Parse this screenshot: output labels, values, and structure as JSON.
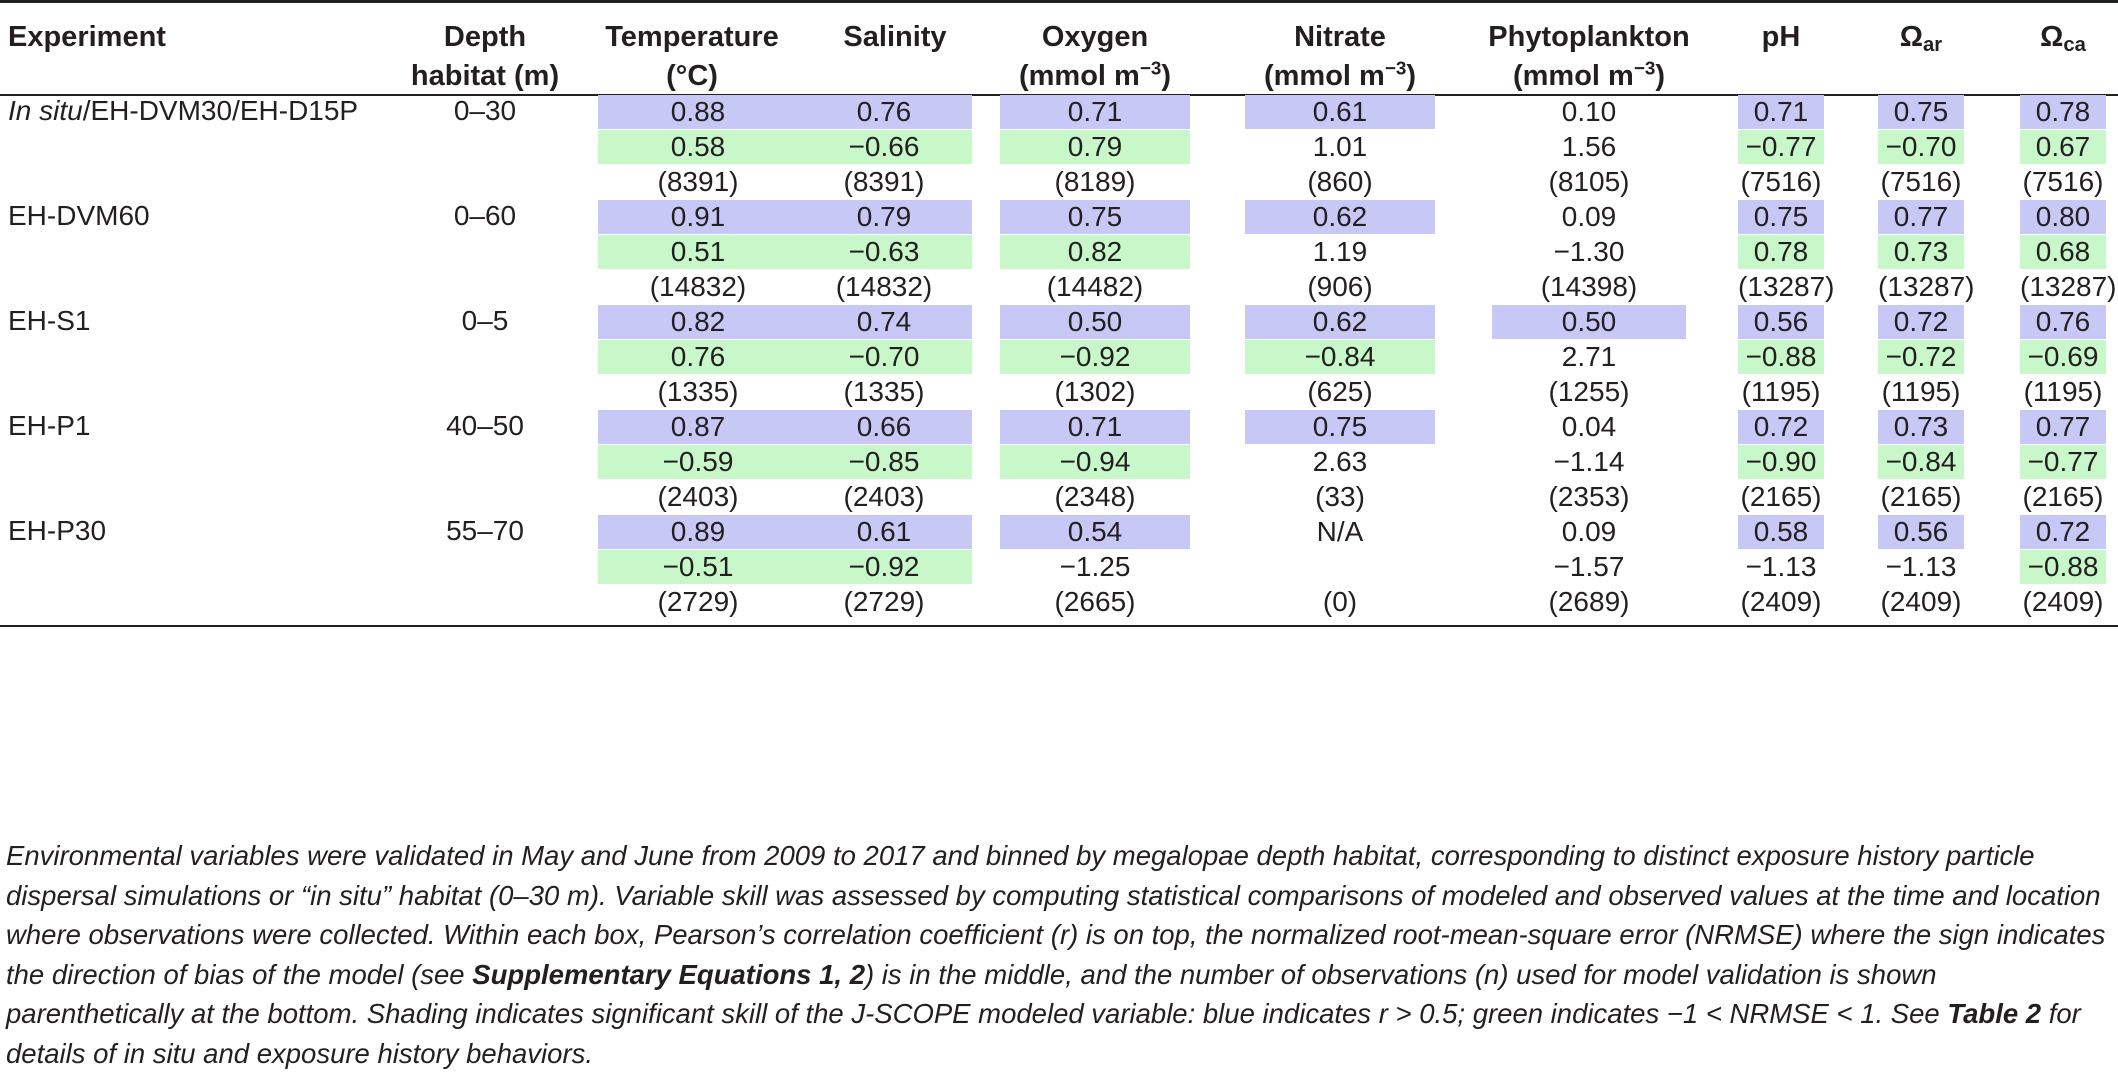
{
  "headers": {
    "experiment": "Experiment",
    "depth": [
      "Depth",
      "habitat (m)"
    ],
    "temperature": [
      "Temperature",
      "(°C)"
    ],
    "salinity": "Salinity",
    "oxygen": [
      "Oxygen",
      "(mmol m",
      "−3",
      ")"
    ],
    "nitrate": [
      "Nitrate",
      "(mmol m",
      "−3",
      ")"
    ],
    "phytoplankton": [
      "Phytoplankton",
      "(mmol m",
      "−3",
      ")"
    ],
    "ph": "pH",
    "omega_ar": [
      "Ω",
      "ar"
    ],
    "omega_ca": [
      "Ω",
      "ca"
    ]
  },
  "rows": [
    {
      "experiment_italic": "In situ",
      "experiment": "/EH-DVM30/EH-D15P",
      "depth": "0–30",
      "cells": [
        {
          "r": "0.88",
          "rb": true,
          "e": "0.58",
          "eg": true,
          "n": "(8391)"
        },
        {
          "r": "0.76",
          "rb": true,
          "e": "−0.66",
          "eg": true,
          "n": "(8391)"
        },
        {
          "r": "0.71",
          "rb": true,
          "e": "0.79",
          "eg": true,
          "n": "(8189)"
        },
        {
          "r": "0.61",
          "rb": true,
          "e": "1.01",
          "eg": false,
          "n": "(860)"
        },
        {
          "r": "0.10",
          "rb": false,
          "e": "1.56",
          "eg": false,
          "n": "(8105)"
        },
        {
          "r": "0.71",
          "rb": true,
          "e": "−0.77",
          "eg": true,
          "n": "(7516)"
        },
        {
          "r": "0.75",
          "rb": true,
          "e": "−0.70",
          "eg": true,
          "n": "(7516)"
        },
        {
          "r": "0.78",
          "rb": true,
          "e": "0.67",
          "eg": true,
          "n": "(7516)"
        }
      ]
    },
    {
      "experiment_italic": "",
      "experiment": "EH-DVM60",
      "depth": "0–60",
      "cells": [
        {
          "r": "0.91",
          "rb": true,
          "e": "0.51",
          "eg": true,
          "n": "(14832)"
        },
        {
          "r": "0.79",
          "rb": true,
          "e": "−0.63",
          "eg": true,
          "n": "(14832)"
        },
        {
          "r": "0.75",
          "rb": true,
          "e": "0.82",
          "eg": true,
          "n": "(14482)"
        },
        {
          "r": "0.62",
          "rb": true,
          "e": "1.19",
          "eg": false,
          "n": "(906)"
        },
        {
          "r": "0.09",
          "rb": false,
          "e": "−1.30",
          "eg": false,
          "n": "(14398)"
        },
        {
          "r": "0.75",
          "rb": true,
          "e": "0.78",
          "eg": true,
          "n": "(13287)"
        },
        {
          "r": "0.77",
          "rb": true,
          "e": "0.73",
          "eg": true,
          "n": "(13287)"
        },
        {
          "r": "0.80",
          "rb": true,
          "e": "0.68",
          "eg": true,
          "n": "(13287)"
        }
      ]
    },
    {
      "experiment_italic": "",
      "experiment": "EH-S1",
      "depth": "0–5",
      "cells": [
        {
          "r": "0.82",
          "rb": true,
          "e": "0.76",
          "eg": true,
          "n": "(1335)"
        },
        {
          "r": "0.74",
          "rb": true,
          "e": "−0.70",
          "eg": true,
          "n": "(1335)"
        },
        {
          "r": "0.50",
          "rb": true,
          "e": "−0.92",
          "eg": true,
          "n": "(1302)"
        },
        {
          "r": "0.62",
          "rb": true,
          "e": "−0.84",
          "eg": true,
          "n": "(625)"
        },
        {
          "r": "0.50",
          "rb": true,
          "e": "2.71",
          "eg": false,
          "n": "(1255)"
        },
        {
          "r": "0.56",
          "rb": true,
          "e": "−0.88",
          "eg": true,
          "n": "(1195)"
        },
        {
          "r": "0.72",
          "rb": true,
          "e": "−0.72",
          "eg": true,
          "n": "(1195)"
        },
        {
          "r": "0.76",
          "rb": true,
          "e": "−0.69",
          "eg": true,
          "n": "(1195)"
        }
      ]
    },
    {
      "experiment_italic": "",
      "experiment": "EH-P1",
      "depth": "40–50",
      "cells": [
        {
          "r": "0.87",
          "rb": true,
          "e": "−0.59",
          "eg": true,
          "n": "(2403)"
        },
        {
          "r": "0.66",
          "rb": true,
          "e": "−0.85",
          "eg": true,
          "n": "(2403)"
        },
        {
          "r": "0.71",
          "rb": true,
          "e": "−0.94",
          "eg": true,
          "n": "(2348)"
        },
        {
          "r": "0.75",
          "rb": true,
          "e": "2.63",
          "eg": false,
          "n": "(33)"
        },
        {
          "r": "0.04",
          "rb": false,
          "e": "−1.14",
          "eg": false,
          "n": "(2353)"
        },
        {
          "r": "0.72",
          "rb": true,
          "e": "−0.90",
          "eg": true,
          "n": "(2165)"
        },
        {
          "r": "0.73",
          "rb": true,
          "e": "−0.84",
          "eg": true,
          "n": "(2165)"
        },
        {
          "r": "0.77",
          "rb": true,
          "e": "−0.77",
          "eg": true,
          "n": "(2165)"
        }
      ]
    },
    {
      "experiment_italic": "",
      "experiment": "EH-P30",
      "depth": "55–70",
      "cells": [
        {
          "r": "0.89",
          "rb": true,
          "e": "−0.51",
          "eg": true,
          "n": "(2729)"
        },
        {
          "r": "0.61",
          "rb": true,
          "e": "−0.92",
          "eg": true,
          "n": "(2729)"
        },
        {
          "r": "0.54",
          "rb": true,
          "e": "−1.25",
          "eg": false,
          "n": "(2665)"
        },
        {
          "r": "N/A",
          "rb": false,
          "e": "",
          "eg": false,
          "n": "(0)"
        },
        {
          "r": "0.09",
          "rb": false,
          "e": "−1.57",
          "eg": false,
          "n": "(2689)"
        },
        {
          "r": "0.58",
          "rb": true,
          "e": "−1.13",
          "eg": false,
          "n": "(2409)"
        },
        {
          "r": "0.56",
          "rb": true,
          "e": "−1.13",
          "eg": false,
          "n": "(2409)"
        },
        {
          "r": "0.72",
          "rb": true,
          "e": "−0.88",
          "eg": true,
          "n": "(2409)"
        }
      ]
    }
  ],
  "caption": {
    "p1": "Environmental variables were validated in May and June from 2009 to 2017 and binned by megalopae depth habitat, corresponding to distinct exposure history particle dispersal simulations or “in situ” habitat (0–30 m). Variable skill was assessed by computing statistical comparisons of modeled and observed values at the time and location where observations were collected. Within each box, Pearson’s correlation coefficient (r) is on top, the normalized root-mean-square error (NRMSE) where the sign indicates the direction of bias of the model (see ",
    "ref1": "Supplementary Equations 1, 2",
    "p2": ") is in the middle, and the number of observations (n) used for model validation is shown parenthetically at the bottom. Shading indicates significant skill of the J-SCOPE modeled variable: blue indicates r > 0.5; green indicates −1 < NRMSE < 1. See ",
    "ref2": "Table 2",
    "p3": " for details of in situ and exposure history behaviors."
  }
}
